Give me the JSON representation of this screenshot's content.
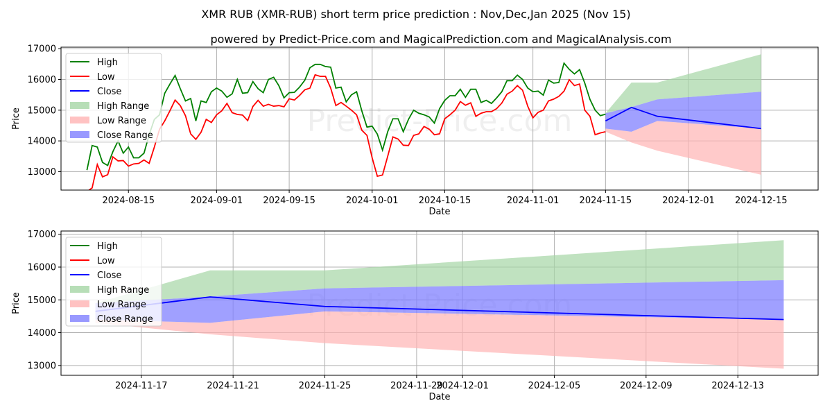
{
  "title": "XMR RUB (XMR-RUB) short term price prediction : Nov,Dec,Jan 2025 (Nov 15)",
  "subtitle": "powered by Predict-Price.com and MagicalPrediction.com and MagicalAnalysis.com",
  "watermark": "Predict-Price.com",
  "colors": {
    "high": "#008000",
    "low": "#ff0000",
    "close": "#0000ff",
    "high_range": "#a5d6a5",
    "low_range": "#ffb3b3",
    "close_range": "#8080ff"
  },
  "legend": [
    "High",
    "Low",
    "Close",
    "High Range",
    "Low Range",
    "Close Range"
  ],
  "chart_data": [
    {
      "type": "line",
      "xlabel": "Date",
      "ylabel": "Price",
      "xlim": [
        "2024-08-02",
        "2024-12-26"
      ],
      "ylim": [
        12400,
        17050
      ],
      "yticks": [
        13000,
        14000,
        15000,
        16000,
        17000
      ],
      "xticks": [
        "2024-08-15",
        "2024-09-01",
        "2024-09-15",
        "2024-10-01",
        "2024-10-15",
        "2024-11-01",
        "2024-11-15",
        "2024-12-01",
        "2024-12-15"
      ],
      "grid": true,
      "legend_position": "top-left",
      "history_start": "2024-08-07",
      "high": [
        13050,
        13850,
        13800,
        13300,
        13200,
        13650,
        14000,
        13600,
        13800,
        13450,
        13450,
        13600,
        14200,
        14700,
        14850,
        15550,
        15850,
        16130,
        15700,
        15300,
        15380,
        14650,
        15300,
        15250,
        15600,
        15720,
        15620,
        15420,
        15530,
        16000,
        15550,
        15570,
        15930,
        15700,
        15570,
        16000,
        16070,
        15800,
        15400,
        15570,
        15580,
        15750,
        15970,
        16380,
        16490,
        16490,
        16420,
        16400,
        15720,
        15750,
        15270,
        15500,
        15600,
        14980,
        14450,
        14480,
        14220,
        13700,
        14300,
        14720,
        14720,
        14300,
        14700,
        15000,
        14900,
        14850,
        14780,
        14580,
        15050,
        15320,
        15470,
        15470,
        15680,
        15420,
        15680,
        15680,
        15250,
        15320,
        15220,
        15400,
        15600,
        15960,
        15960,
        16140,
        16000,
        15720,
        15600,
        15620,
        15490,
        15980,
        15880,
        15900,
        16530,
        16330,
        16180,
        16320,
        15880,
        15350,
        15000,
        14820,
        14870
      ],
      "low": [
        12350,
        12470,
        13230,
        12830,
        12900,
        13480,
        13350,
        13360,
        13180,
        13250,
        13270,
        13380,
        13270,
        13800,
        14380,
        14650,
        14980,
        15330,
        15150,
        14820,
        14230,
        14050,
        14280,
        14700,
        14600,
        14850,
        14980,
        15220,
        14920,
        14860,
        14840,
        14660,
        15120,
        15320,
        15130,
        15190,
        15130,
        15150,
        15110,
        15370,
        15330,
        15480,
        15660,
        15720,
        16150,
        16100,
        16100,
        15720,
        15150,
        15250,
        15130,
        15000,
        14850,
        14350,
        14180,
        13450,
        12850,
        12890,
        13500,
        14130,
        14060,
        13860,
        13850,
        14180,
        14230,
        14470,
        14380,
        14200,
        14230,
        14720,
        14850,
        15000,
        15280,
        15160,
        15240,
        14800,
        14900,
        14950,
        14950,
        15050,
        15230,
        15520,
        15620,
        15800,
        15650,
        15130,
        14750,
        14930,
        15000,
        15300,
        15360,
        15450,
        15620,
        15990,
        15800,
        15850,
        15000,
        14800,
        14200,
        14260,
        14300
      ],
      "forecast": {
        "dates": [
          "2024-11-15",
          "2024-11-20",
          "2024-11-25",
          "2024-12-15"
        ],
        "close": [
          14650,
          15090,
          14800,
          14400
        ],
        "high_range": {
          "lower": [
            14900,
            15100,
            15350,
            15600
          ],
          "upper": [
            14900,
            15900,
            15900,
            16820
          ]
        },
        "close_range": {
          "lower": [
            14400,
            14300,
            14650,
            14400
          ],
          "upper": [
            14900,
            15100,
            15350,
            15600
          ]
        },
        "low_range": {
          "lower": [
            14300,
            13950,
            13680,
            12900
          ],
          "upper": [
            14400,
            14300,
            14650,
            14400
          ]
        }
      }
    },
    {
      "type": "line",
      "xlabel": "Date",
      "ylabel": "Price",
      "xlim": [
        "2024-11-13.5",
        "2024-12-16.5"
      ],
      "ylim": [
        12700,
        17100
      ],
      "yticks": [
        13000,
        14000,
        15000,
        16000,
        17000
      ],
      "xticks": [
        "2024-11-17",
        "2024-11-21",
        "2024-11-25",
        "2024-11-29",
        "2024-12-01",
        "2024-12-05",
        "2024-12-09",
        "2024-12-13"
      ],
      "grid": true,
      "legend_position": "top-left"
    }
  ]
}
